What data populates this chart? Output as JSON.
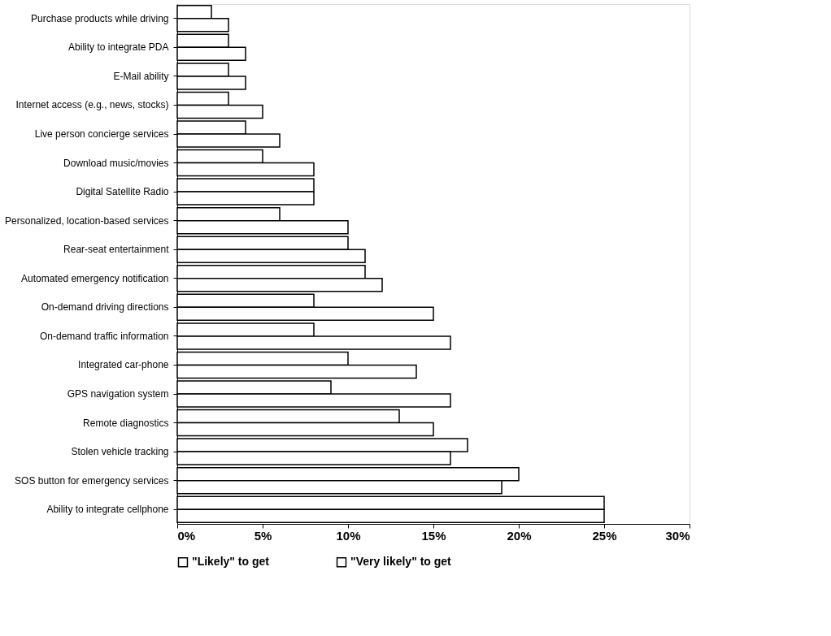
{
  "chart_data": {
    "type": "bar",
    "orientation": "horizontal",
    "categories": [
      "Purchase products while driving",
      "Ability to integrate PDA",
      "E-Mail ability",
      "Internet access (e.g., news, stocks)",
      "Live person concierge services",
      "Download music/movies",
      "Digital Satellite Radio",
      "Personalized, location-based services",
      "Rear-seat entertainment",
      "Automated emergency notification",
      "On-demand driving directions",
      "On-demand traffic information",
      "Integrated car-phone",
      "GPS navigation system",
      "Remote diagnostics",
      "Stolen vehicle tracking",
      "SOS button for emergency services",
      "Ability to integrate cellphone"
    ],
    "series": [
      {
        "name": "\"Very likely\" to get",
        "color": "#ffffff",
        "values": [
          2,
          3,
          3,
          3,
          4,
          5,
          8,
          6,
          10,
          11,
          8,
          8,
          10,
          9,
          13,
          17,
          20,
          25
        ]
      },
      {
        "name": "\"Likely\" to get",
        "color": "#ffffff",
        "values": [
          3,
          4,
          4,
          5,
          6,
          8,
          8,
          10,
          11,
          12,
          15,
          16,
          14,
          16,
          15,
          16,
          19,
          25
        ]
      }
    ],
    "xlim": [
      0,
      30
    ],
    "xticks": [
      {
        "value": 0,
        "label": "0%"
      },
      {
        "value": 5,
        "label": "5%"
      },
      {
        "value": 10,
        "label": "10%"
      },
      {
        "value": 15,
        "label": "15%"
      },
      {
        "value": 20,
        "label": "20%"
      },
      {
        "value": 25,
        "label": "25%"
      },
      {
        "value": 30,
        "label": "30%"
      }
    ],
    "grid": false,
    "legend": "bottom"
  }
}
